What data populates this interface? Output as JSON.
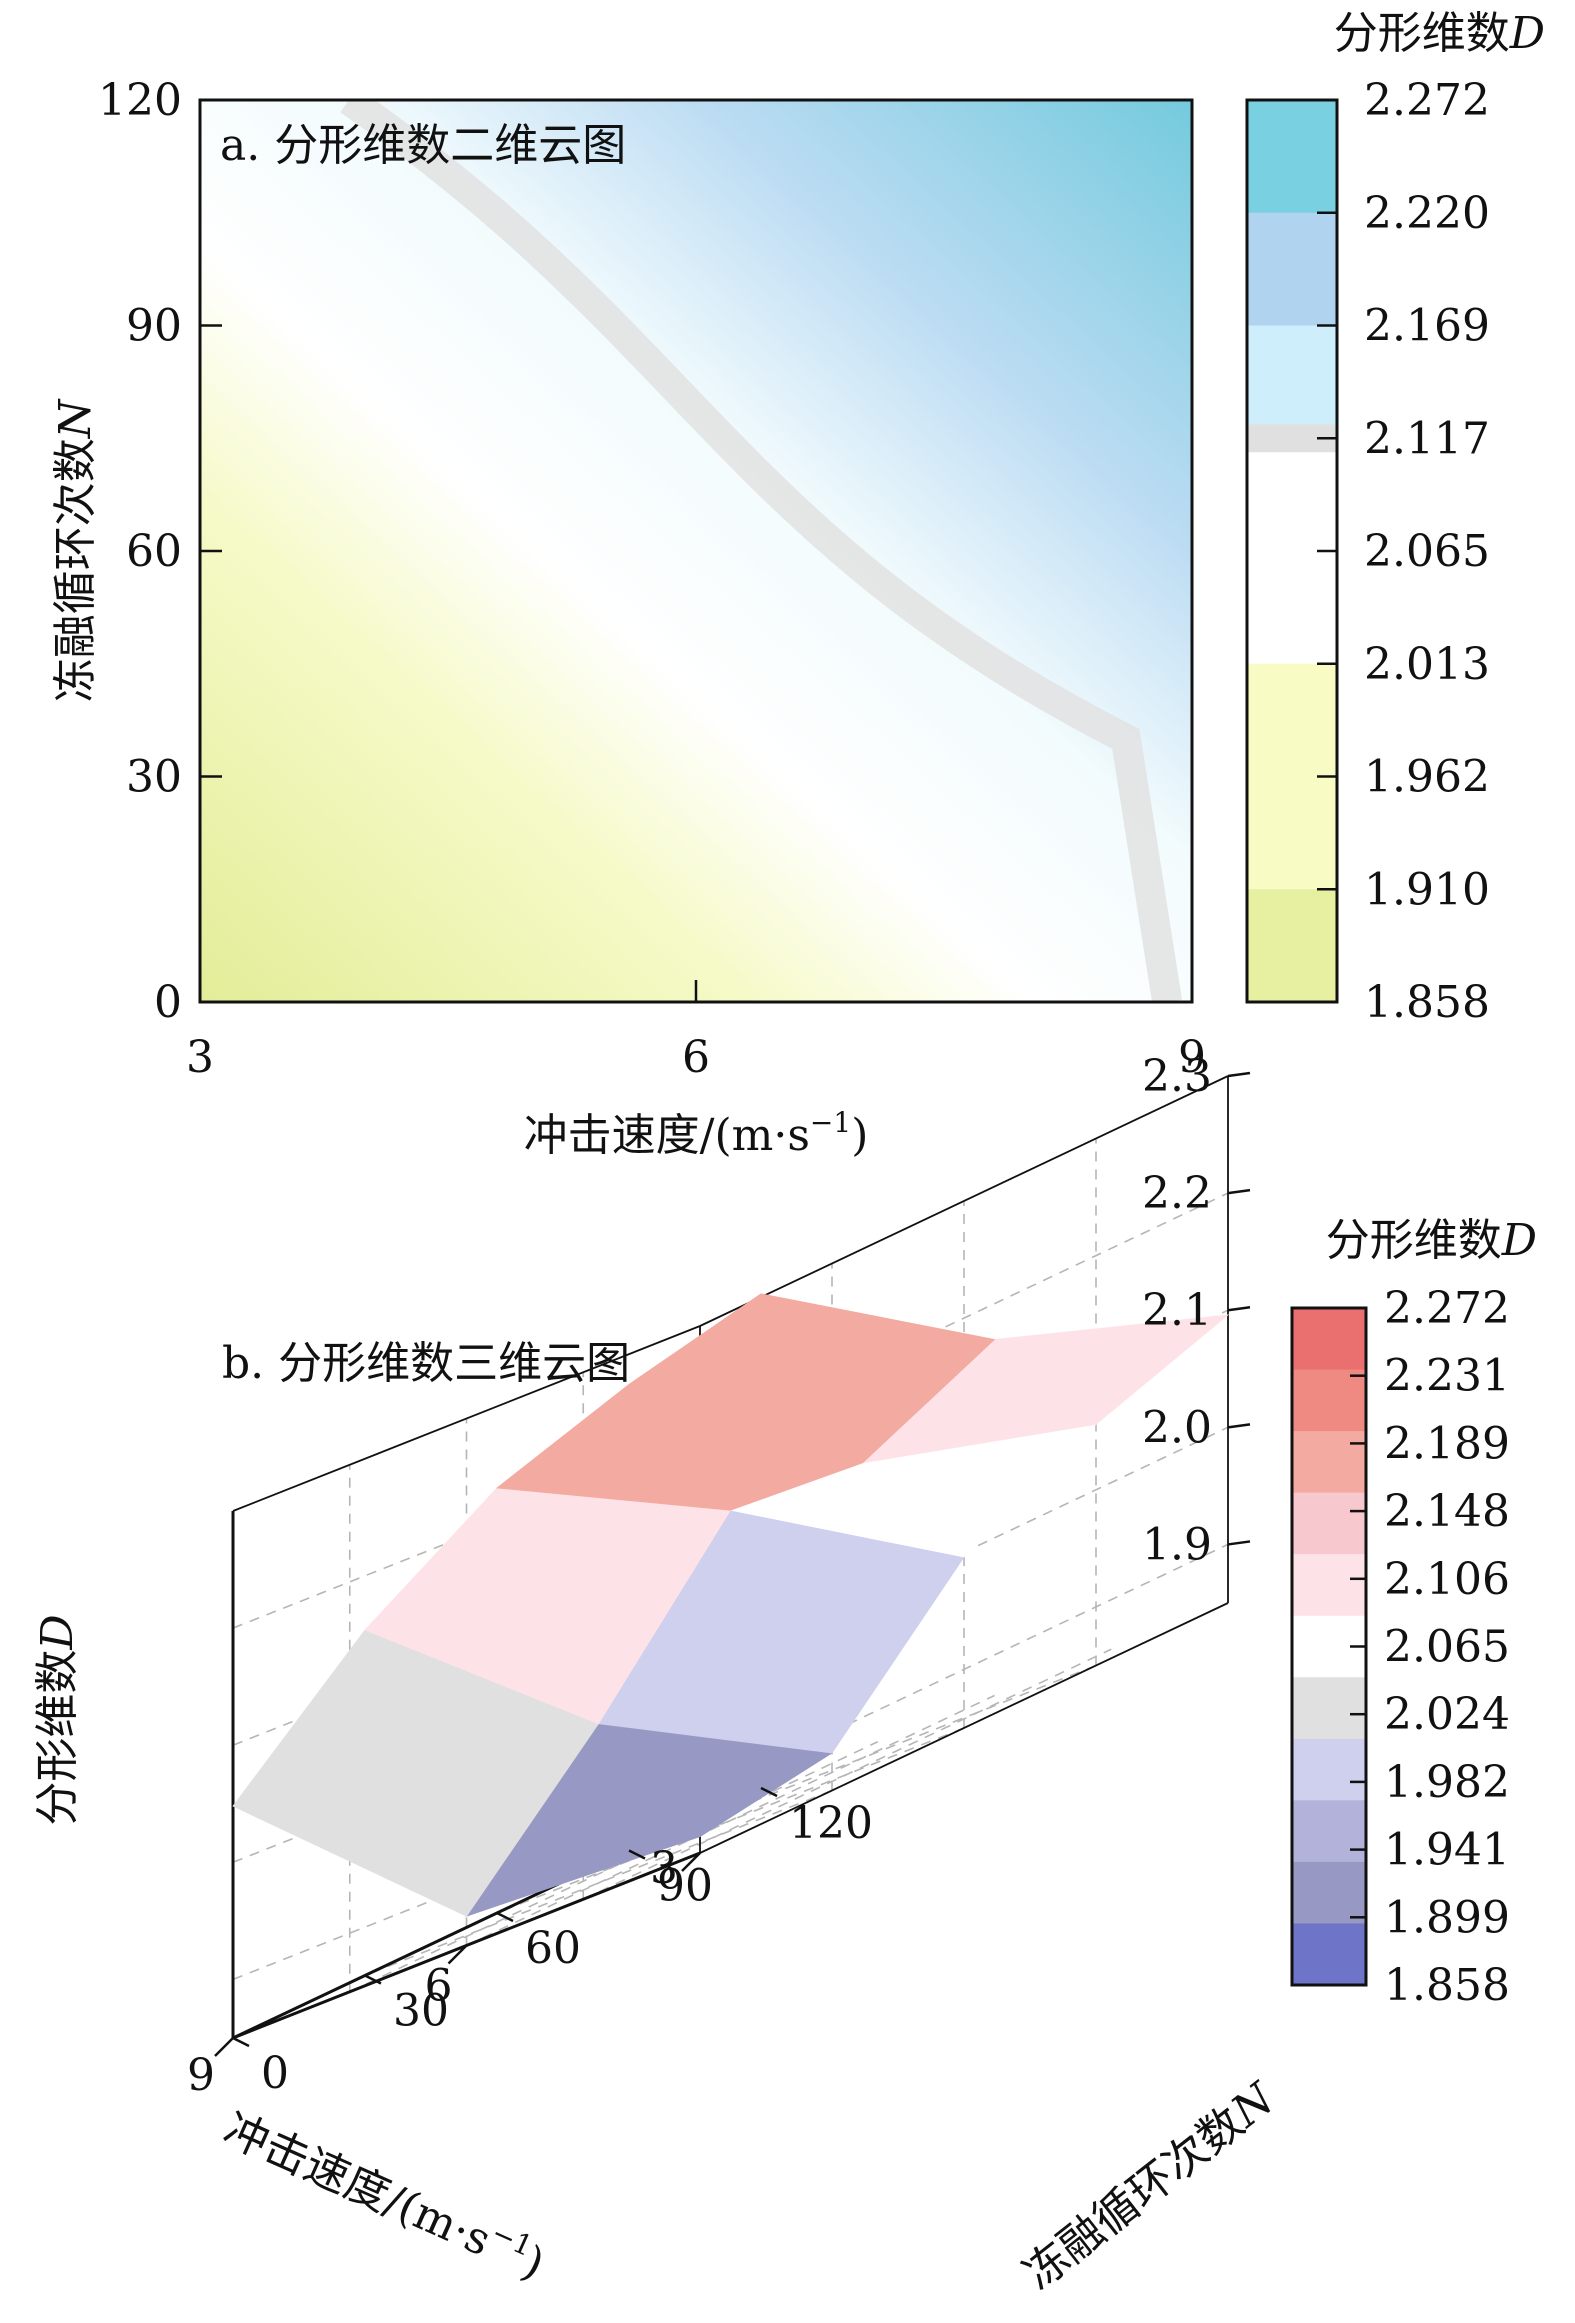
{
  "chart_data": [
    {
      "type": "heatmap",
      "title": "a. 分形维数二维云图",
      "xlabel": "冲击速度/(m·s",
      "xlabel_sup": "−1",
      "xlabel_tail": ")",
      "ylabel_main": "冻融循环次数",
      "ylabel_var": "N",
      "x_ticks": [
        "3",
        "6",
        "9"
      ],
      "y_ticks": [
        "0",
        "30",
        "60",
        "90",
        "120"
      ],
      "xlim": [
        3,
        9
      ],
      "ylim": [
        0,
        120
      ],
      "x": [
        3,
        4.5,
        6,
        7.5,
        9
      ],
      "y": [
        0,
        30,
        60,
        90,
        120
      ],
      "z": [
        [
          1.86,
          1.93,
          1.99,
          2.05,
          2.12
        ],
        [
          1.93,
          1.98,
          2.04,
          2.09,
          2.16
        ],
        [
          1.99,
          2.04,
          2.09,
          2.14,
          2.2
        ],
        [
          2.05,
          2.1,
          2.15,
          2.2,
          2.25
        ],
        [
          2.09,
          2.14,
          2.18,
          2.23,
          2.27
        ]
      ],
      "colorbar_title_main": "分形维数",
      "colorbar_title_var": "D",
      "colorbar_ticks": [
        "2.272",
        "2.220",
        "2.169",
        "2.117",
        "2.065",
        "2.013",
        "1.962",
        "1.910",
        "1.858"
      ],
      "colorbar_colors": [
        "#79d0e0",
        "#b0d4f0",
        "#cdeefa",
        "#ffffff",
        "#ffffff",
        "#f8fcc4",
        "#f8fcc4",
        "#e6f0a0"
      ],
      "colors": {
        "gray_band": "#e2e2e2"
      }
    },
    {
      "type": "surface3d",
      "title": "b. 分形维数三维云图",
      "zlabel_main": "分形维数",
      "zlabel_var": "D",
      "z_ticks": [
        "1.9",
        "2.0",
        "2.1",
        "2.2",
        "2.3"
      ],
      "x_ticks": [
        "3",
        "6",
        "9"
      ],
      "y_ticks": [
        "0",
        "30",
        "60",
        "90",
        "120"
      ],
      "xlabel": "冲击速度/(m·s",
      "xlabel_sup": "−1",
      "xlabel_tail": ")",
      "ylabel_main": "冻融循环次数",
      "ylabel_var": "N",
      "colorbar_title_main": "分形维数",
      "colorbar_title_var": "D",
      "colorbar_ticks": [
        "2.272",
        "2.231",
        "2.189",
        "2.148",
        "2.106",
        "2.065",
        "2.024",
        "1.982",
        "1.941",
        "1.899",
        "1.858"
      ],
      "colorbar_colors": [
        "#ea6f6f",
        "#ef8a82",
        "#f3aaa0",
        "#f8c8cf",
        "#fde3e8",
        "#ffffff",
        "#e0e0e0",
        "#cfcfee",
        "#b2b2da",
        "#9898c4",
        "#6e74c8"
      ],
      "surface_curves": [
        [
          [
            3,
            1.864
          ],
          [
            6,
            1.875
          ],
          [
            9,
            2.048
          ]
        ],
        [
          [
            3,
            1.882
          ],
          [
            6,
            1.986
          ],
          [
            9,
            2.145
          ]
        ],
        [
          [
            3,
            1.996
          ],
          [
            6,
            2.115
          ],
          [
            9,
            2.213
          ]
        ],
        [
          [
            3,
            2.056
          ],
          [
            6,
            2.102
          ],
          [
            9,
            2.248
          ]
        ],
        [
          [
            3,
            2.096
          ],
          [
            6,
            2.154
          ],
          [
            9,
            2.272
          ]
        ]
      ]
    }
  ]
}
